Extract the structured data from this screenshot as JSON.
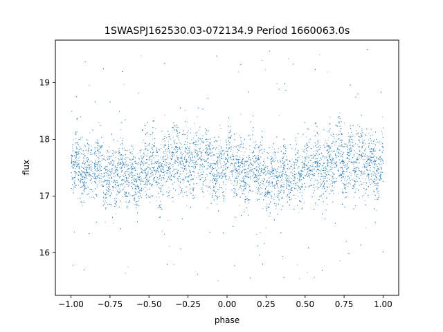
{
  "chart_data": {
    "type": "scatter",
    "title": "1SWASPJ162530.03-072134.9 Period 1660063.0s",
    "xlabel": "phase",
    "ylabel": "flux",
    "xlim": [
      -1.1,
      1.1
    ],
    "ylim": [
      15.25,
      19.75
    ],
    "xticks": [
      -1.0,
      -0.75,
      -0.5,
      -0.25,
      0.0,
      0.25,
      0.5,
      0.75,
      1.0
    ],
    "xtick_labels": [
      "−1.00",
      "−0.75",
      "−0.50",
      "−0.25",
      "0.00",
      "0.25",
      "0.50",
      "0.75",
      "1.00"
    ],
    "yticks": [
      16,
      17,
      18,
      19
    ],
    "ytick_labels": [
      "16",
      "17",
      "18",
      "19"
    ],
    "grid": false,
    "legend": "none",
    "marker_color": "#1f77b4",
    "series": [
      {
        "description_points": "phase-folded light curve, dense band",
        "x": [
          -1.0,
          -0.875,
          -0.75,
          -0.625,
          -0.5,
          -0.375,
          -0.25,
          -0.125,
          0.0,
          0.125,
          0.25,
          0.375,
          0.5,
          0.625,
          0.75,
          0.875,
          1.0
        ],
        "y_median": [
          17.55,
          17.5,
          17.4,
          17.35,
          17.45,
          17.6,
          17.65,
          17.6,
          17.5,
          17.45,
          17.4,
          17.35,
          17.45,
          17.55,
          17.65,
          17.6,
          17.55
        ],
        "y_spread": [
          0.45,
          0.5,
          0.5,
          0.45,
          0.5,
          0.55,
          0.55,
          0.5,
          0.45,
          0.5,
          0.5,
          0.45,
          0.5,
          0.55,
          0.55,
          0.5,
          0.45
        ]
      }
    ]
  }
}
